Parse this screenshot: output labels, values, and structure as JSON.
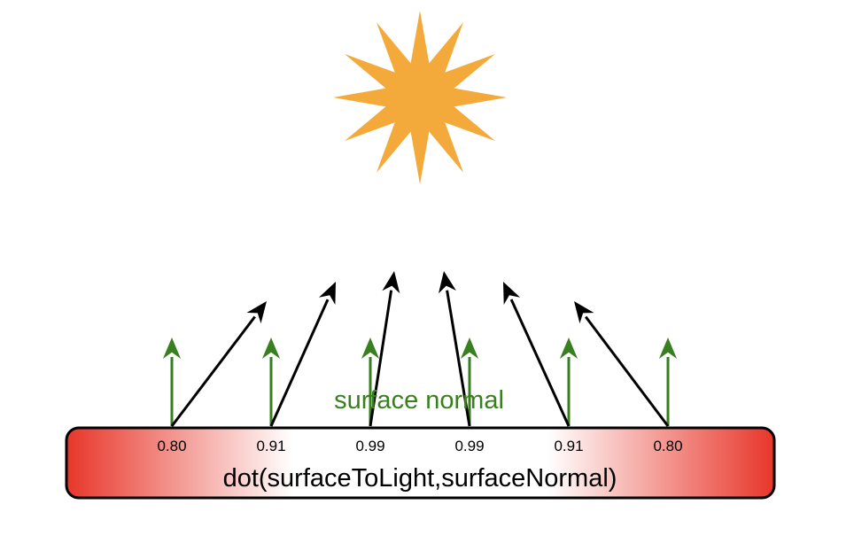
{
  "colors": {
    "sun": "#F4A93B",
    "normal_arrow": "#3A7F1F",
    "light_arrow": "#000000",
    "surface_edge": "#E8362A",
    "surface_center": "#FFFFFF",
    "surface_border": "#000000"
  },
  "sun": {
    "icon": "sun-icon"
  },
  "surface": {
    "formula": "dot(surfaceToLight,surfaceNormal)"
  },
  "normal_label": "surface normal",
  "sample_points": [
    {
      "value": "0.80"
    },
    {
      "value": "0.91"
    },
    {
      "value": "0.99"
    },
    {
      "value": "0.99"
    },
    {
      "value": "0.91"
    },
    {
      "value": "0.80"
    }
  ]
}
